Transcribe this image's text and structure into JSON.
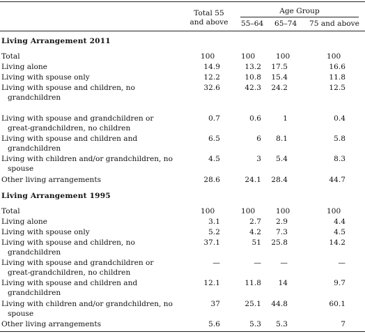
{
  "header": {
    "total_line1": "Total 55",
    "total_line2": "and above",
    "age_group": "Age Group",
    "age_cols": [
      "55–64",
      "65–74",
      "75 and above"
    ]
  },
  "sections": [
    {
      "title": "Living Arrangement 2011",
      "rows": [
        {
          "label": [
            "Total"
          ],
          "values": [
            "100",
            "100",
            "100",
            "100"
          ]
        },
        {
          "label": [
            "Living alone"
          ],
          "values": [
            "14.9",
            "13.2",
            "17.5",
            "16.6"
          ]
        },
        {
          "label": [
            "Living with spouse only"
          ],
          "values": [
            "12.2",
            "10.8",
            "15.4",
            "11.8"
          ]
        },
        {
          "label": [
            "Living with spouse and children, no",
            "grandchildren"
          ],
          "values": [
            "32.6",
            "42.3",
            "24.2",
            "12.5"
          ]
        },
        {
          "label": [
            "Living with spouse and grandchildren or",
            "great-grandchildren, no children"
          ],
          "values": [
            "0.7",
            "0.6",
            "1",
            "0.4"
          ]
        },
        {
          "label": [
            "Living with spouse and children and",
            "grandchildren"
          ],
          "values": [
            "6.5",
            "6",
            "8.1",
            "5.8"
          ]
        },
        {
          "label": [
            "Living with children and/or grandchildren, no",
            "spouse"
          ],
          "values": [
            "4.5",
            "3",
            "5.4",
            "8.3"
          ]
        },
        {
          "label": [
            "Other living arrangements"
          ],
          "values": [
            "28.6",
            "24.1",
            "28.4",
            "44.7"
          ]
        }
      ]
    },
    {
      "title": "Living Arrangement 1995",
      "rows": [
        {
          "label": [
            "Total"
          ],
          "values": [
            "100",
            "100",
            "100",
            "100"
          ]
        },
        {
          "label": [
            "Living alone"
          ],
          "values": [
            "3.1",
            "2.7",
            "2.9",
            "4.4"
          ]
        },
        {
          "label": [
            "Living with spouse only"
          ],
          "values": [
            "5.2",
            "4.2",
            "7.3",
            "4.5"
          ]
        },
        {
          "label": [
            "Living with spouse and children, no",
            "grandchildren"
          ],
          "values": [
            "37.1",
            "51",
            "25.8",
            "14.2"
          ]
        },
        {
          "label": [
            "Living with spouse and grandchildren or",
            "great-grandchildren, no children"
          ],
          "values": [
            "—",
            "—",
            "—",
            "—"
          ]
        },
        {
          "label": [
            "Living with spouse and children and",
            "grandchildren"
          ],
          "values": [
            "12.1",
            "11.8",
            "14",
            "9.7"
          ]
        },
        {
          "label": [
            "Living with children and/or grandchildren, no",
            "spouse"
          ],
          "values": [
            "37",
            "25.1",
            "44.8",
            "60.1"
          ]
        },
        {
          "label": [
            "Other living arrangements"
          ],
          "values": [
            "5.6",
            "5.3",
            "5.3",
            "7"
          ]
        }
      ]
    }
  ]
}
